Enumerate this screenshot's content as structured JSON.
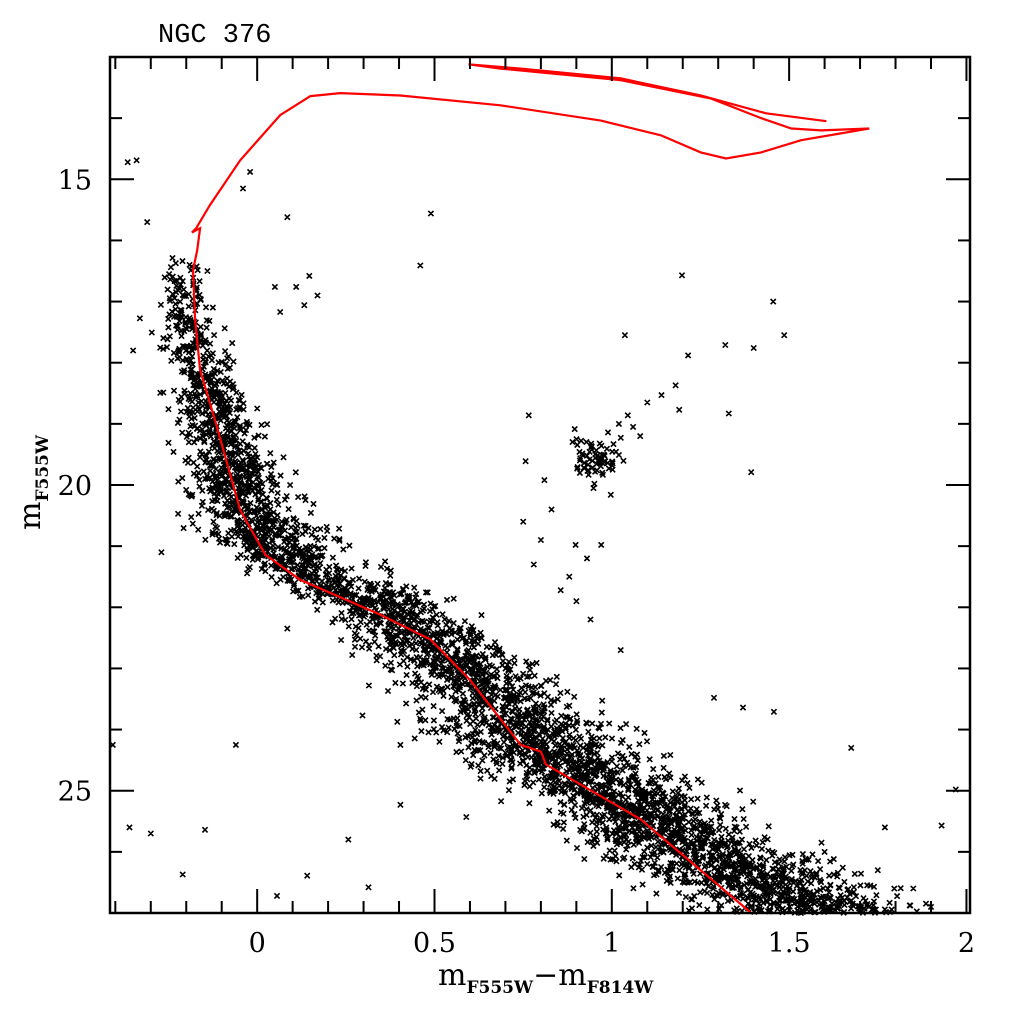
{
  "chart_data": {
    "type": "scatter",
    "title": "NGC 376",
    "xlabel": {
      "main": "m",
      "sub1": "F555W",
      "dash": "−",
      "main2": "m",
      "sub2": "F814W"
    },
    "ylabel": {
      "main": "m",
      "sub": "F555W"
    },
    "xlim": [
      -0.415,
      2.01
    ],
    "ylim": [
      27.0,
      13.0
    ],
    "y_inverted": true,
    "x_ticks": [
      {
        "value": 0,
        "label": "0"
      },
      {
        "value": 0.5,
        "label": "0.5"
      },
      {
        "value": 1,
        "label": "1"
      },
      {
        "value": 1.5,
        "label": "1.5"
      },
      {
        "value": 2,
        "label": "2"
      }
    ],
    "x_minor_step": 0.1,
    "y_ticks": [
      {
        "value": 15,
        "label": "15"
      },
      {
        "value": 20,
        "label": "20"
      },
      {
        "value": 25,
        "label": "25"
      }
    ],
    "y_minor_step": 1,
    "grid": false,
    "marker_color": "#000000",
    "isochrone": {
      "color": "#ff0000",
      "points": [
        [
          1.393,
          27.0
        ],
        [
          1.082,
          25.47
        ],
        [
          0.814,
          24.57
        ],
        [
          0.8,
          24.36
        ],
        [
          0.743,
          24.25
        ],
        [
          0.6,
          23.19
        ],
        [
          0.489,
          22.53
        ],
        [
          0.347,
          22.12
        ],
        [
          0.121,
          21.55
        ],
        [
          0.023,
          21.14
        ],
        [
          -0.048,
          20.41
        ],
        [
          -0.119,
          18.94
        ],
        [
          -0.161,
          18.12
        ],
        [
          -0.175,
          17.3
        ],
        [
          -0.181,
          16.49
        ],
        [
          -0.169,
          16.16
        ],
        [
          -0.161,
          15.8
        ],
        [
          -0.184,
          15.87
        ],
        [
          -0.172,
          15.8
        ],
        [
          -0.133,
          15.42
        ],
        [
          -0.048,
          14.69
        ],
        [
          0.065,
          13.95
        ],
        [
          0.15,
          13.64
        ],
        [
          0.234,
          13.59
        ],
        [
          0.404,
          13.63
        ],
        [
          0.686,
          13.79
        ],
        [
          0.969,
          14.04
        ],
        [
          1.138,
          14.28
        ],
        [
          1.251,
          14.56
        ],
        [
          1.322,
          14.66
        ],
        [
          1.421,
          14.56
        ],
        [
          1.534,
          14.36
        ],
        [
          1.726,
          14.17
        ],
        [
          1.59,
          14.2
        ],
        [
          1.506,
          14.17
        ],
        [
          1.421,
          14.0
        ],
        [
          1.28,
          13.68
        ],
        [
          1.025,
          13.38
        ],
        [
          0.686,
          13.19
        ],
        [
          0.596,
          13.12
        ],
        [
          0.743,
          13.19
        ],
        [
          1.025,
          13.35
        ],
        [
          1.251,
          13.63
        ],
        [
          1.435,
          13.92
        ],
        [
          1.605,
          14.05
        ]
      ]
    },
    "field_stars": [
      [
        -0.365,
        14.72
      ],
      [
        -0.34,
        14.69
      ],
      [
        -0.31,
        15.7
      ],
      [
        -0.04,
        15.15
      ],
      [
        -0.02,
        14.88
      ],
      [
        0.085,
        15.62
      ],
      [
        0.49,
        15.56
      ],
      [
        0.46,
        16.41
      ],
      [
        0.05,
        16.76
      ],
      [
        0.11,
        16.76
      ],
      [
        0.147,
        16.58
      ],
      [
        0.17,
        16.9
      ],
      [
        0.065,
        17.17
      ],
      [
        0.133,
        17.06
      ],
      [
        1.198,
        16.57
      ],
      [
        1.455,
        17.0
      ],
      [
        1.037,
        17.55
      ],
      [
        1.486,
        17.55
      ],
      [
        1.32,
        17.71
      ],
      [
        1.4,
        17.76
      ],
      [
        1.215,
        17.88
      ],
      [
        -0.35,
        17.8
      ],
      [
        1.18,
        18.37
      ],
      [
        1.14,
        18.53
      ],
      [
        1.19,
        18.77
      ],
      [
        0.766,
        18.86
      ],
      [
        1.045,
        18.86
      ],
      [
        1.33,
        18.83
      ],
      [
        1.393,
        19.79
      ],
      [
        0.757,
        19.61
      ],
      [
        0.91,
        19.6
      ],
      [
        0.81,
        19.92
      ],
      [
        0.997,
        20.16
      ],
      [
        -0.2,
        20.08
      ],
      [
        -0.27,
        21.1
      ],
      [
        -0.06,
        24.25
      ],
      [
        0.297,
        23.77
      ],
      [
        0.268,
        22.78
      ],
      [
        0.404,
        24.25
      ],
      [
        -0.147,
        25.64
      ],
      [
        -0.36,
        25.6
      ],
      [
        -0.3,
        25.7
      ],
      [
        0.257,
        25.8
      ],
      [
        0.404,
        25.23
      ],
      [
        1.288,
        23.48
      ],
      [
        1.37,
        23.64
      ],
      [
        1.457,
        23.71
      ],
      [
        1.675,
        24.3
      ],
      [
        1.97,
        24.98
      ],
      [
        1.77,
        25.6
      ],
      [
        1.93,
        25.57
      ],
      [
        -0.21,
        26.37
      ],
      [
        0.141,
        26.39
      ],
      [
        0.314,
        26.58
      ],
      [
        0.056,
        26.72
      ],
      [
        0.8,
        20.9
      ],
      [
        0.856,
        21.72
      ],
      [
        0.898,
        20.98
      ],
      [
        0.97,
        20.98
      ],
      [
        1.025,
        22.7
      ],
      [
        0.94,
        22.2
      ],
      [
        -0.407,
        24.25
      ],
      [
        1.06,
        19.05
      ],
      [
        1.08,
        19.2
      ],
      [
        1.02,
        19.0
      ],
      [
        1.1,
        18.65
      ],
      [
        0.93,
        21.2
      ],
      [
        0.88,
        21.5
      ],
      [
        0.9,
        21.9
      ],
      [
        0.78,
        21.3
      ],
      [
        0.75,
        20.6
      ],
      [
        0.83,
        20.4
      ],
      [
        1.6,
        26.0
      ],
      [
        1.75,
        26.3
      ],
      [
        1.85,
        26.6
      ],
      [
        1.9,
        26.9
      ]
    ],
    "red_clump": {
      "center": [
        0.96,
        19.55
      ],
      "sigma": [
        0.035,
        0.18
      ],
      "count": 70
    },
    "main_sequence": {
      "ridge": [
        [
          -0.22,
          16.2
        ],
        [
          -0.21,
          17.0
        ],
        [
          -0.17,
          18.0
        ],
        [
          -0.1,
          19.2
        ],
        [
          -0.04,
          20.3
        ],
        [
          0.04,
          21.0
        ],
        [
          0.2,
          21.6
        ],
        [
          0.4,
          22.2
        ],
        [
          0.55,
          22.9
        ],
        [
          0.68,
          23.6
        ],
        [
          0.8,
          24.3
        ],
        [
          0.98,
          25.0
        ],
        [
          1.18,
          25.8
        ],
        [
          1.4,
          26.5
        ],
        [
          1.6,
          27.0
        ]
      ],
      "color_sigma": [
        0.025,
        0.14
      ],
      "count": 4200
    }
  }
}
